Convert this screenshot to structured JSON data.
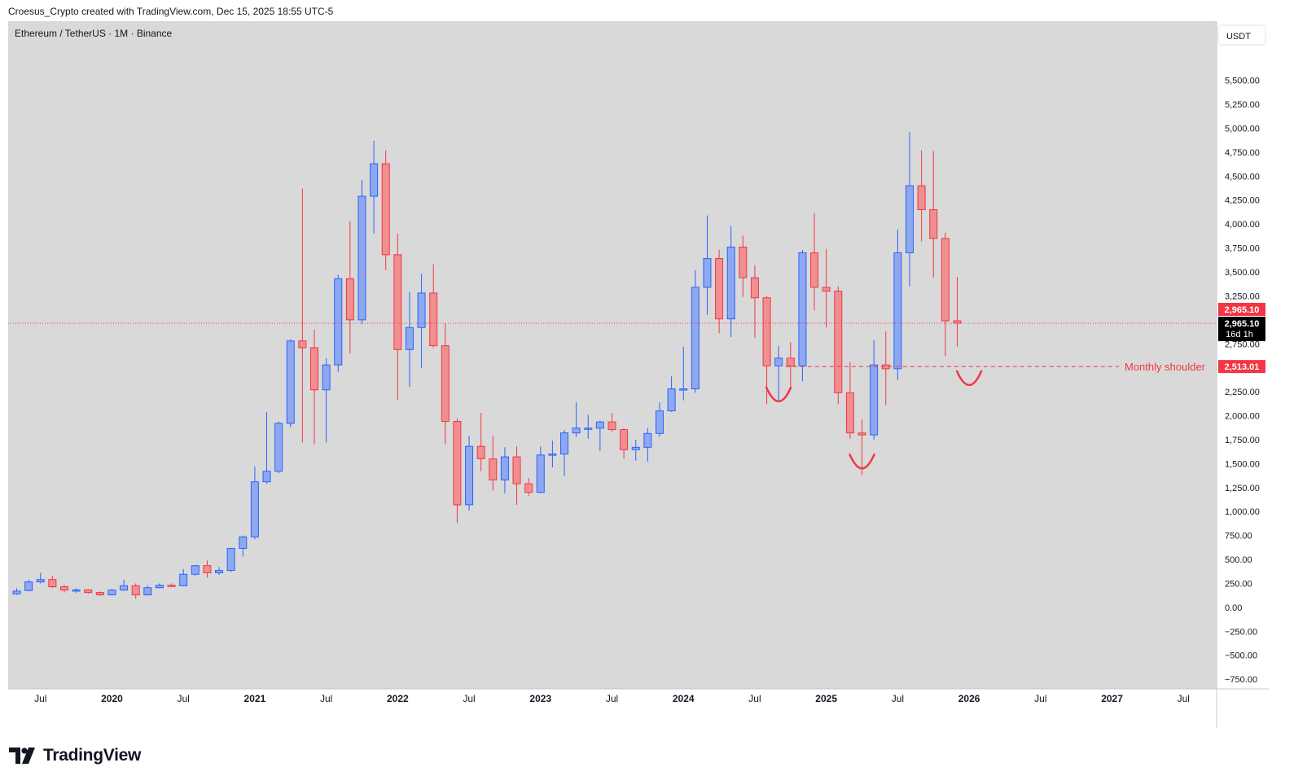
{
  "caption": "Croesus_Crypto created with TradingView.com, Dec 15, 2025 18:55 UTC-5",
  "brand": "TradingView",
  "chart_data": {
    "type": "candlestick",
    "title": "Ethereum / TetherUS · 1M · Binance",
    "currency_button": "USDT",
    "ylim": [
      -800,
      5650
    ],
    "y_ticks": [
      5500,
      5250,
      5000,
      4750,
      4500,
      4250,
      4000,
      3750,
      3500,
      3250,
      3000,
      2750,
      2250,
      2000,
      1750,
      1500,
      1250,
      1000,
      750,
      500,
      250,
      0,
      -250,
      -500,
      -750
    ],
    "y_tick_labels": [
      "5,500.00",
      "5,250.00",
      "5,000.00",
      "4,750.00",
      "4,500.00",
      "4,250.00",
      "4,000.00",
      "3,750.00",
      "3,500.00",
      "3,250.00",
      "3,000.00",
      "2,750.00",
      "2,250.00",
      "2,000.00",
      "1,750.00",
      "1,500.00",
      "1,250.00",
      "1,000.00",
      "750.00",
      "500.00",
      "250.00",
      "0.00",
      "−250.00",
      "−500.00",
      "−750.00"
    ],
    "x_ticks": [
      {
        "label": "Jul",
        "month": "2019-07"
      },
      {
        "label": "2020",
        "month": "2020-01"
      },
      {
        "label": "Jul",
        "month": "2020-07"
      },
      {
        "label": "2021",
        "month": "2021-01"
      },
      {
        "label": "Jul",
        "month": "2021-07"
      },
      {
        "label": "2022",
        "month": "2022-01"
      },
      {
        "label": "Jul",
        "month": "2022-07"
      },
      {
        "label": "2023",
        "month": "2023-01"
      },
      {
        "label": "Jul",
        "month": "2023-07"
      },
      {
        "label": "2024",
        "month": "2024-01"
      },
      {
        "label": "Jul",
        "month": "2024-07"
      },
      {
        "label": "2025",
        "month": "2025-01"
      },
      {
        "label": "Jul",
        "month": "2025-07"
      },
      {
        "label": "2026",
        "month": "2026-01"
      },
      {
        "label": "Jul",
        "month": "2026-07"
      },
      {
        "label": "2027",
        "month": "2027-01"
      },
      {
        "label": "Jul",
        "month": "2027-07"
      }
    ],
    "colors": {
      "up": "#8ea8f0",
      "up_border": "#2962ff",
      "down": "#ef8f8f",
      "down_border": "#f23645",
      "background": "#d9d9d9",
      "annotation": "#f23645"
    },
    "candles": [
      {
        "m": "2019-05",
        "o": 140,
        "h": 200,
        "l": 130,
        "c": 170
      },
      {
        "m": "2019-06",
        "o": 175,
        "h": 290,
        "l": 170,
        "c": 265
      },
      {
        "m": "2019-07",
        "o": 265,
        "h": 360,
        "l": 250,
        "c": 290
      },
      {
        "m": "2019-08",
        "o": 290,
        "h": 330,
        "l": 200,
        "c": 215
      },
      {
        "m": "2019-09",
        "o": 215,
        "h": 235,
        "l": 155,
        "c": 180
      },
      {
        "m": "2019-10",
        "o": 178,
        "h": 200,
        "l": 150,
        "c": 182
      },
      {
        "m": "2019-11",
        "o": 182,
        "h": 190,
        "l": 140,
        "c": 155
      },
      {
        "m": "2019-12",
        "o": 155,
        "h": 165,
        "l": 120,
        "c": 130
      },
      {
        "m": "2020-01",
        "o": 130,
        "h": 190,
        "l": 125,
        "c": 180
      },
      {
        "m": "2020-02",
        "o": 180,
        "h": 290,
        "l": 170,
        "c": 225
      },
      {
        "m": "2020-03",
        "o": 225,
        "h": 250,
        "l": 90,
        "c": 130
      },
      {
        "m": "2020-04",
        "o": 130,
        "h": 230,
        "l": 125,
        "c": 205
      },
      {
        "m": "2020-05",
        "o": 205,
        "h": 250,
        "l": 200,
        "c": 230
      },
      {
        "m": "2020-06",
        "o": 230,
        "h": 250,
        "l": 215,
        "c": 225
      },
      {
        "m": "2020-07",
        "o": 225,
        "h": 400,
        "l": 220,
        "c": 345
      },
      {
        "m": "2020-08",
        "o": 345,
        "h": 440,
        "l": 330,
        "c": 435
      },
      {
        "m": "2020-09",
        "o": 435,
        "h": 490,
        "l": 310,
        "c": 360
      },
      {
        "m": "2020-10",
        "o": 360,
        "h": 420,
        "l": 340,
        "c": 385
      },
      {
        "m": "2020-11",
        "o": 385,
        "h": 620,
        "l": 370,
        "c": 615
      },
      {
        "m": "2020-12",
        "o": 615,
        "h": 750,
        "l": 530,
        "c": 735
      },
      {
        "m": "2021-01",
        "o": 735,
        "h": 1470,
        "l": 710,
        "c": 1310
      },
      {
        "m": "2021-02",
        "o": 1310,
        "h": 2040,
        "l": 1290,
        "c": 1420
      },
      {
        "m": "2021-03",
        "o": 1420,
        "h": 1940,
        "l": 1400,
        "c": 1920
      },
      {
        "m": "2021-04",
        "o": 1920,
        "h": 2800,
        "l": 1880,
        "c": 2780
      },
      {
        "m": "2021-05",
        "o": 2780,
        "h": 4370,
        "l": 1720,
        "c": 2710
      },
      {
        "m": "2021-06",
        "o": 2710,
        "h": 2900,
        "l": 1700,
        "c": 2270
      },
      {
        "m": "2021-07",
        "o": 2270,
        "h": 2600,
        "l": 1720,
        "c": 2530
      },
      {
        "m": "2021-08",
        "o": 2530,
        "h": 3470,
        "l": 2460,
        "c": 3430
      },
      {
        "m": "2021-09",
        "o": 3430,
        "h": 4030,
        "l": 2650,
        "c": 3000
      },
      {
        "m": "2021-10",
        "o": 3000,
        "h": 4460,
        "l": 2960,
        "c": 4290
      },
      {
        "m": "2021-11",
        "o": 4290,
        "h": 4870,
        "l": 3900,
        "c": 4630
      },
      {
        "m": "2021-12",
        "o": 4630,
        "h": 4770,
        "l": 3520,
        "c": 3680
      },
      {
        "m": "2022-01",
        "o": 3680,
        "h": 3900,
        "l": 2160,
        "c": 2690
      },
      {
        "m": "2022-02",
        "o": 2690,
        "h": 3290,
        "l": 2300,
        "c": 2920
      },
      {
        "m": "2022-03",
        "o": 2920,
        "h": 3480,
        "l": 2500,
        "c": 3280
      },
      {
        "m": "2022-04",
        "o": 3280,
        "h": 3580,
        "l": 2710,
        "c": 2730
      },
      {
        "m": "2022-05",
        "o": 2730,
        "h": 2960,
        "l": 1700,
        "c": 1940
      },
      {
        "m": "2022-06",
        "o": 1940,
        "h": 1970,
        "l": 880,
        "c": 1070
      },
      {
        "m": "2022-07",
        "o": 1070,
        "h": 1790,
        "l": 1010,
        "c": 1680
      },
      {
        "m": "2022-08",
        "o": 1680,
        "h": 2030,
        "l": 1420,
        "c": 1550
      },
      {
        "m": "2022-09",
        "o": 1550,
        "h": 1790,
        "l": 1220,
        "c": 1330
      },
      {
        "m": "2022-10",
        "o": 1330,
        "h": 1670,
        "l": 1190,
        "c": 1570
      },
      {
        "m": "2022-11",
        "o": 1570,
        "h": 1680,
        "l": 1070,
        "c": 1290
      },
      {
        "m": "2022-12",
        "o": 1290,
        "h": 1350,
        "l": 1160,
        "c": 1200
      },
      {
        "m": "2023-01",
        "o": 1200,
        "h": 1680,
        "l": 1190,
        "c": 1590
      },
      {
        "m": "2023-02",
        "o": 1590,
        "h": 1740,
        "l": 1460,
        "c": 1600
      },
      {
        "m": "2023-03",
        "o": 1600,
        "h": 1850,
        "l": 1370,
        "c": 1820
      },
      {
        "m": "2023-04",
        "o": 1820,
        "h": 2140,
        "l": 1780,
        "c": 1870
      },
      {
        "m": "2023-05",
        "o": 1870,
        "h": 2010,
        "l": 1760,
        "c": 1870
      },
      {
        "m": "2023-06",
        "o": 1870,
        "h": 1950,
        "l": 1630,
        "c": 1935
      },
      {
        "m": "2023-07",
        "o": 1935,
        "h": 2030,
        "l": 1830,
        "c": 1855
      },
      {
        "m": "2023-08",
        "o": 1855,
        "h": 1870,
        "l": 1550,
        "c": 1645
      },
      {
        "m": "2023-09",
        "o": 1645,
        "h": 1750,
        "l": 1530,
        "c": 1670
      },
      {
        "m": "2023-10",
        "o": 1670,
        "h": 1870,
        "l": 1520,
        "c": 1815
      },
      {
        "m": "2023-11",
        "o": 1815,
        "h": 2140,
        "l": 1780,
        "c": 2050
      },
      {
        "m": "2023-12",
        "o": 2050,
        "h": 2410,
        "l": 2040,
        "c": 2280
      },
      {
        "m": "2024-01",
        "o": 2280,
        "h": 2720,
        "l": 2160,
        "c": 2280
      },
      {
        "m": "2024-02",
        "o": 2280,
        "h": 3520,
        "l": 2240,
        "c": 3340
      },
      {
        "m": "2024-03",
        "o": 3340,
        "h": 4090,
        "l": 3050,
        "c": 3640
      },
      {
        "m": "2024-04",
        "o": 3640,
        "h": 3730,
        "l": 2860,
        "c": 3010
      },
      {
        "m": "2024-05",
        "o": 3010,
        "h": 3980,
        "l": 2820,
        "c": 3760
      },
      {
        "m": "2024-06",
        "o": 3760,
        "h": 3880,
        "l": 3240,
        "c": 3440
      },
      {
        "m": "2024-07",
        "o": 3440,
        "h": 3570,
        "l": 2810,
        "c": 3230
      },
      {
        "m": "2024-08",
        "o": 3230,
        "h": 3250,
        "l": 2120,
        "c": 2520
      },
      {
        "m": "2024-09",
        "o": 2520,
        "h": 2730,
        "l": 2150,
        "c": 2600
      },
      {
        "m": "2024-10",
        "o": 2600,
        "h": 2770,
        "l": 2310,
        "c": 2520
      },
      {
        "m": "2024-11",
        "o": 2520,
        "h": 3730,
        "l": 2360,
        "c": 3700
      },
      {
        "m": "2024-12",
        "o": 3700,
        "h": 4110,
        "l": 3100,
        "c": 3340
      },
      {
        "m": "2025-01",
        "o": 3340,
        "h": 3740,
        "l": 2920,
        "c": 3300
      },
      {
        "m": "2025-02",
        "o": 3300,
        "h": 3350,
        "l": 2120,
        "c": 2240
      },
      {
        "m": "2025-03",
        "o": 2240,
        "h": 2560,
        "l": 1760,
        "c": 1820
      },
      {
        "m": "2025-04",
        "o": 1820,
        "h": 1960,
        "l": 1380,
        "c": 1800
      },
      {
        "m": "2025-05",
        "o": 1800,
        "h": 2790,
        "l": 1750,
        "c": 2530
      },
      {
        "m": "2025-06",
        "o": 2530,
        "h": 2880,
        "l": 2110,
        "c": 2490
      },
      {
        "m": "2025-07",
        "o": 2490,
        "h": 3940,
        "l": 2370,
        "c": 3700
      },
      {
        "m": "2025-08",
        "o": 3700,
        "h": 4960,
        "l": 3350,
        "c": 4400
      },
      {
        "m": "2025-09",
        "o": 4400,
        "h": 4770,
        "l": 3820,
        "c": 4150
      },
      {
        "m": "2025-10",
        "o": 4150,
        "h": 4760,
        "l": 3440,
        "c": 3850
      },
      {
        "m": "2025-11",
        "o": 3850,
        "h": 3910,
        "l": 2620,
        "c": 2990
      },
      {
        "m": "2025-12",
        "o": 2990,
        "h": 3450,
        "l": 2720,
        "c": 2965.1
      }
    ],
    "current_price": {
      "value": 2965.1,
      "label": "2,965.10",
      "countdown": "16d 1h",
      "top_badge": "2,965.10"
    },
    "shoulder": {
      "value": 2513.01,
      "label": "2,513.01",
      "text": "Monthly shoulder",
      "from_month": "2024-10"
    },
    "arcs": [
      {
        "month": "2024-09",
        "price": 2150,
        "shape": "u"
      },
      {
        "month": "2025-04",
        "price": 1450,
        "shape": "u"
      },
      {
        "month": "2026-01",
        "price": 2320,
        "shape": "u"
      }
    ]
  }
}
